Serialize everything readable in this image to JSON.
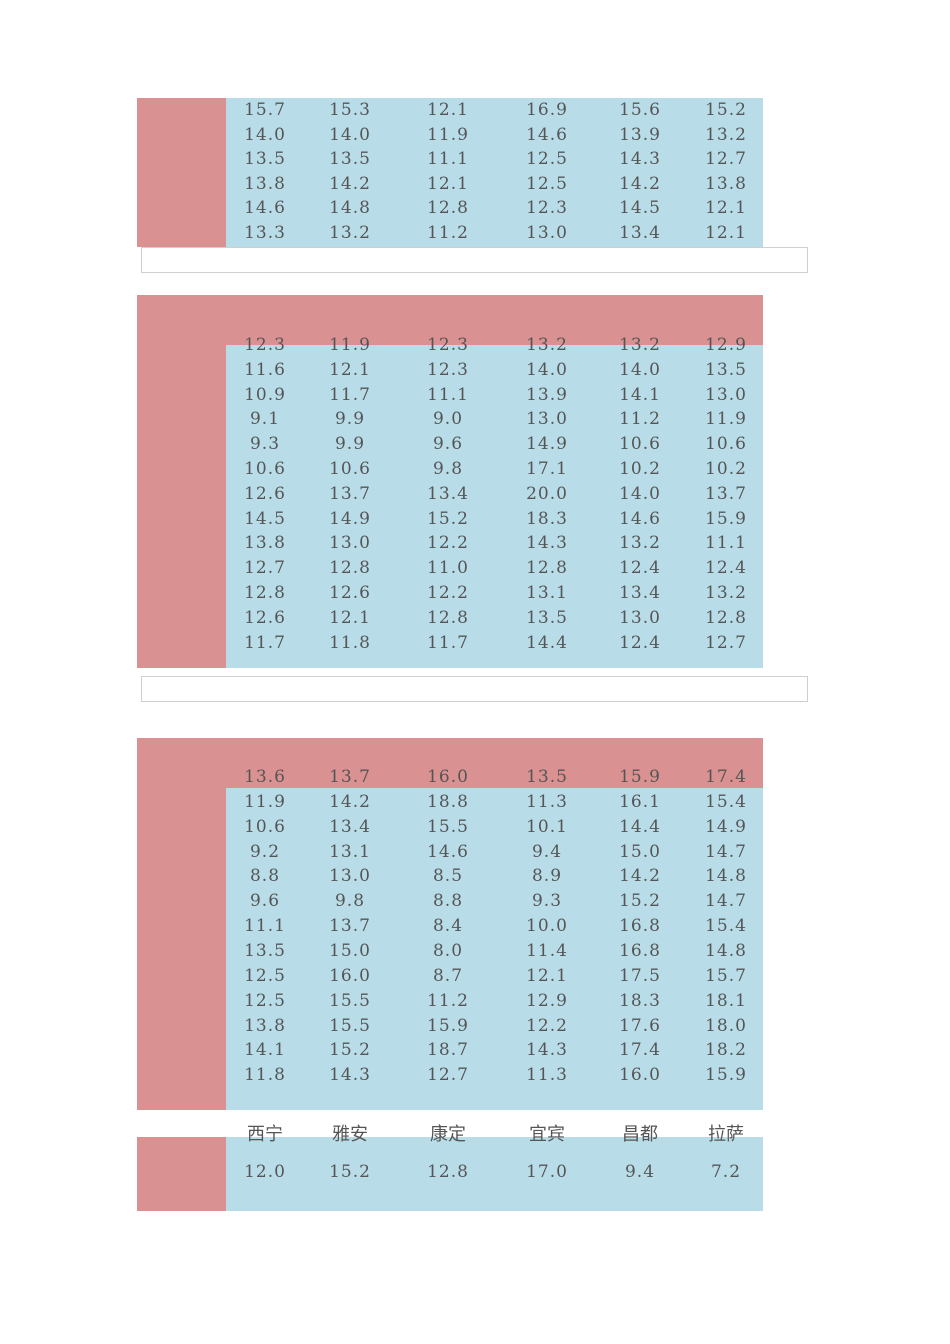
{
  "table1": {
    "rows": [
      [
        "15.7",
        "15.3",
        "12.1",
        "16.9",
        "15.6",
        "15.2"
      ],
      [
        "14.0",
        "14.0",
        "11.9",
        "14.6",
        "13.9",
        "13.2"
      ],
      [
        "13.5",
        "13.5",
        "11.1",
        "12.5",
        "14.3",
        "12.7"
      ],
      [
        "13.8",
        "14.2",
        "12.1",
        "12.5",
        "14.2",
        "13.8"
      ],
      [
        "14.6",
        "14.8",
        "12.8",
        "12.3",
        "14.5",
        "12.1"
      ],
      [
        "13.3",
        "13.2",
        "11.2",
        "13.0",
        "13.4",
        "12.1"
      ]
    ]
  },
  "table2": {
    "rows": [
      [
        "12.3",
        "11.9",
        "12.3",
        "13.2",
        "13.2",
        "12.9"
      ],
      [
        "11.6",
        "12.1",
        "12.3",
        "14.0",
        "14.0",
        "13.5"
      ],
      [
        "10.9",
        "11.7",
        "11.1",
        "13.9",
        "14.1",
        "13.0"
      ],
      [
        "9.1",
        "9.9",
        "9.0",
        "13.0",
        "11.2",
        "11.9"
      ],
      [
        "9.3",
        "9.9",
        "9.6",
        "14.9",
        "10.6",
        "10.6"
      ],
      [
        "10.6",
        "10.6",
        "9.8",
        "17.1",
        "10.2",
        "10.2"
      ],
      [
        "12.6",
        "13.7",
        "13.4",
        "20.0",
        "14.0",
        "13.7"
      ],
      [
        "14.5",
        "14.9",
        "15.2",
        "18.3",
        "14.6",
        "15.9"
      ],
      [
        "13.8",
        "13.0",
        "12.2",
        "14.3",
        "13.2",
        "11.1"
      ],
      [
        "12.7",
        "12.8",
        "11.0",
        "12.8",
        "12.4",
        "12.4"
      ],
      [
        "12.8",
        "12.6",
        "12.2",
        "13.1",
        "13.4",
        "13.2"
      ],
      [
        "12.6",
        "12.1",
        "12.8",
        "13.5",
        "13.0",
        "12.8"
      ],
      [
        "11.7",
        "11.8",
        "11.7",
        "14.4",
        "12.4",
        "12.7"
      ]
    ]
  },
  "table3": {
    "rows": [
      [
        "13.6",
        "13.7",
        "16.0",
        "13.5",
        "15.9",
        "17.4"
      ],
      [
        "11.9",
        "14.2",
        "18.8",
        "11.3",
        "16.1",
        "15.4"
      ],
      [
        "10.6",
        "13.4",
        "15.5",
        "10.1",
        "14.4",
        "14.9"
      ],
      [
        "9.2",
        "13.1",
        "14.6",
        "9.4",
        "15.0",
        "14.7"
      ],
      [
        "8.8",
        "13.0",
        "8.5",
        "8.9",
        "14.2",
        "14.8"
      ],
      [
        "9.6",
        "9.8",
        "8.8",
        "9.3",
        "15.2",
        "14.7"
      ],
      [
        "11.1",
        "13.7",
        "8.4",
        "10.0",
        "16.8",
        "15.4"
      ],
      [
        "13.5",
        "15.0",
        "8.0",
        "11.4",
        "16.8",
        "14.8"
      ],
      [
        "12.5",
        "16.0",
        "8.7",
        "12.1",
        "17.5",
        "15.7"
      ],
      [
        "12.5",
        "15.5",
        "11.2",
        "12.9",
        "18.3",
        "18.1"
      ],
      [
        "13.8",
        "15.5",
        "15.9",
        "12.2",
        "17.6",
        "18.0"
      ],
      [
        "14.1",
        "15.2",
        "18.7",
        "14.3",
        "17.4",
        "18.2"
      ],
      [
        "11.8",
        "14.3",
        "12.7",
        "11.3",
        "16.0",
        "15.9"
      ]
    ]
  },
  "table4": {
    "headers": [
      "西宁",
      "雅安",
      "康定",
      "宜宾",
      "昌都",
      "拉萨"
    ],
    "rows": [
      [
        "12.0",
        "15.2",
        "12.8",
        "17.0",
        "9.4",
        "7.2"
      ]
    ]
  }
}
